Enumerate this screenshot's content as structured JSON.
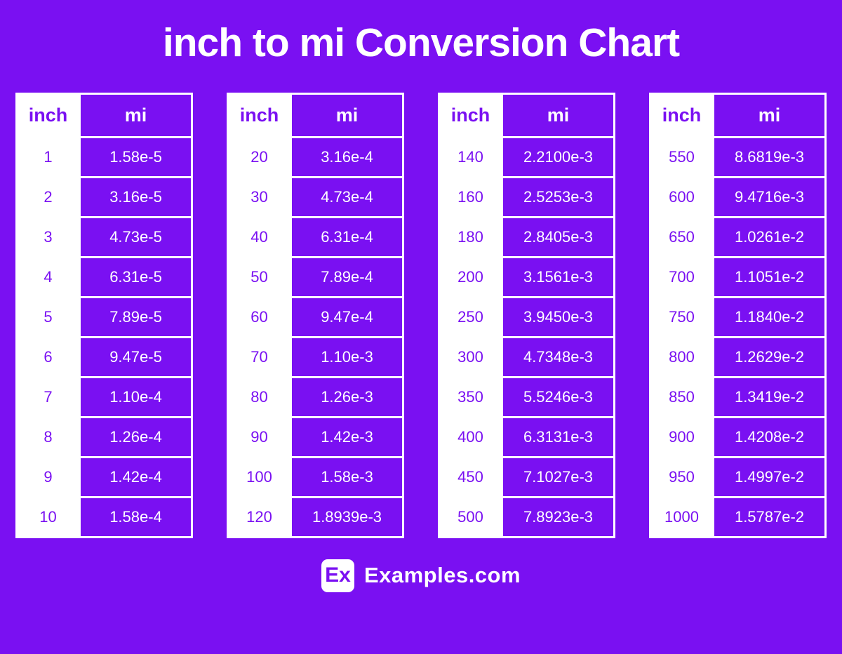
{
  "page": {
    "title": "inch to mi Conversion Chart"
  },
  "colors": {
    "background": "#7A10F2",
    "cell_purple": "#7A10F2",
    "cell_white": "#FFFFFF",
    "title_text": "#FFFFFF",
    "inch_text": "#7A10F2",
    "mi_text": "#FFFFFF"
  },
  "chart_data": {
    "type": "table",
    "title": "inch to mi Conversion Chart",
    "columns": [
      "inch",
      "mi"
    ],
    "layout": {
      "tables_side_by_side": 4,
      "header_style": "inch column white background / mi column purple background",
      "legend": false
    },
    "tables": [
      {
        "rows": [
          [
            "1",
            "1.58e-5"
          ],
          [
            "2",
            "3.16e-5"
          ],
          [
            "3",
            "4.73e-5"
          ],
          [
            "4",
            "6.31e-5"
          ],
          [
            "5",
            "7.89e-5"
          ],
          [
            "6",
            "9.47e-5"
          ],
          [
            "7",
            "1.10e-4"
          ],
          [
            "8",
            "1.26e-4"
          ],
          [
            "9",
            "1.42e-4"
          ],
          [
            "10",
            "1.58e-4"
          ]
        ]
      },
      {
        "rows": [
          [
            "20",
            "3.16e-4"
          ],
          [
            "30",
            "4.73e-4"
          ],
          [
            "40",
            "6.31e-4"
          ],
          [
            "50",
            "7.89e-4"
          ],
          [
            "60",
            "9.47e-4"
          ],
          [
            "70",
            "1.10e-3"
          ],
          [
            "80",
            "1.26e-3"
          ],
          [
            "90",
            "1.42e-3"
          ],
          [
            "100",
            "1.58e-3"
          ],
          [
            "120",
            "1.8939e-3"
          ]
        ]
      },
      {
        "rows": [
          [
            "140",
            "2.2100e-3"
          ],
          [
            "160",
            "2.5253e-3"
          ],
          [
            "180",
            "2.8405e-3"
          ],
          [
            "200",
            "3.1561e-3"
          ],
          [
            "250",
            "3.9450e-3"
          ],
          [
            "300",
            "4.7348e-3"
          ],
          [
            "350",
            "5.5246e-3"
          ],
          [
            "400",
            "6.3131e-3"
          ],
          [
            "450",
            "7.1027e-3"
          ],
          [
            "500",
            "7.8923e-3"
          ]
        ]
      },
      {
        "rows": [
          [
            "550",
            "8.6819e-3"
          ],
          [
            "600",
            "9.4716e-3"
          ],
          [
            "650",
            "1.0261e-2"
          ],
          [
            "700",
            "1.1051e-2"
          ],
          [
            "750",
            "1.1840e-2"
          ],
          [
            "800",
            "1.2629e-2"
          ],
          [
            "850",
            "1.3419e-2"
          ],
          [
            "900",
            "1.4208e-2"
          ],
          [
            "950",
            "1.4997e-2"
          ],
          [
            "1000",
            "1.5787e-2"
          ]
        ]
      }
    ]
  },
  "footer": {
    "logo_text": "Ex",
    "brand": "Examples.com"
  }
}
